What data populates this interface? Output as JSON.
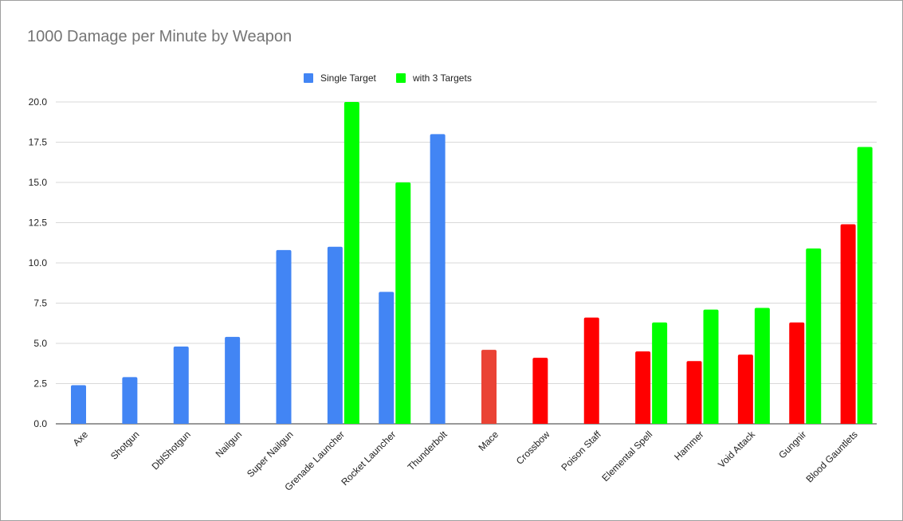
{
  "chart_data": {
    "type": "bar",
    "title": "1000 Damage per Minute by Weapon",
    "xlabel": "",
    "ylabel": "",
    "ylim": [
      0,
      20
    ],
    "yticks": [
      "0.0",
      "2.5",
      "5.0",
      "7.5",
      "10.0",
      "12.5",
      "15.0",
      "17.5",
      "20.0"
    ],
    "grid": true,
    "legend_position": "top",
    "categories": [
      "Axe",
      "Shotgun",
      "DblShotgun",
      "Nailgun",
      "Super Nailgun",
      "Grenade Launcher",
      "Rocket Launcher",
      "Thunderbolt",
      "Mace",
      "Crossbow",
      "Poison Staff",
      "Elemental Spell",
      "Hammer",
      "Void Attack",
      "Gungnir",
      "Blood Gauntlets"
    ],
    "series": [
      {
        "name": "Single Target",
        "color": "#4285f4",
        "values": [
          2.4,
          2.9,
          4.8,
          5.4,
          10.8,
          11.0,
          8.2,
          18.0,
          4.6,
          4.1,
          6.6,
          4.5,
          3.9,
          4.3,
          6.3,
          12.4
        ],
        "point_colors": [
          "#4285f4",
          "#4285f4",
          "#4285f4",
          "#4285f4",
          "#4285f4",
          "#4285f4",
          "#4285f4",
          "#4285f4",
          "#ea4335",
          "#ff0000",
          "#ff0000",
          "#ff0000",
          "#ff0000",
          "#ff0000",
          "#ff0000",
          "#ff0000"
        ]
      },
      {
        "name": "with 3 Targets",
        "color": "#00ff00",
        "values": [
          null,
          null,
          null,
          null,
          null,
          20.0,
          15.0,
          null,
          null,
          null,
          null,
          6.3,
          7.1,
          7.2,
          10.9,
          17.2
        ]
      }
    ]
  }
}
